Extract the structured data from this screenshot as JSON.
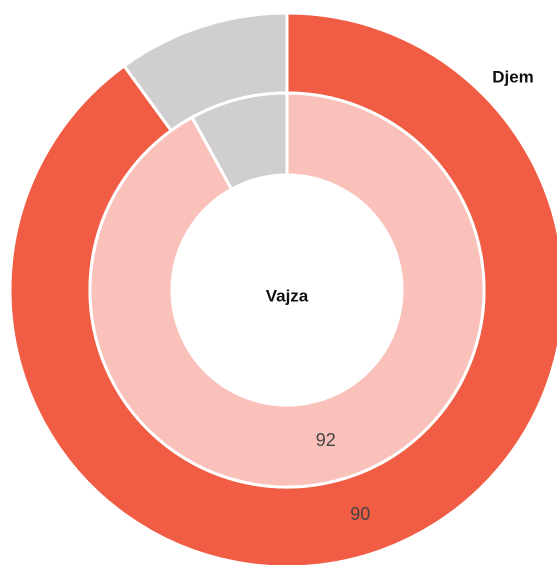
{
  "chart_data": {
    "type": "donut",
    "series": [
      {
        "name": "Djem",
        "values": [
          90,
          10
        ],
        "colors": [
          "#f05c44",
          "#d0cecf"
        ]
      },
      {
        "name": "Vajza",
        "values": [
          92,
          8
        ],
        "colors": [
          "#f9c1ba",
          "#d0cecf"
        ]
      }
    ]
  }
}
